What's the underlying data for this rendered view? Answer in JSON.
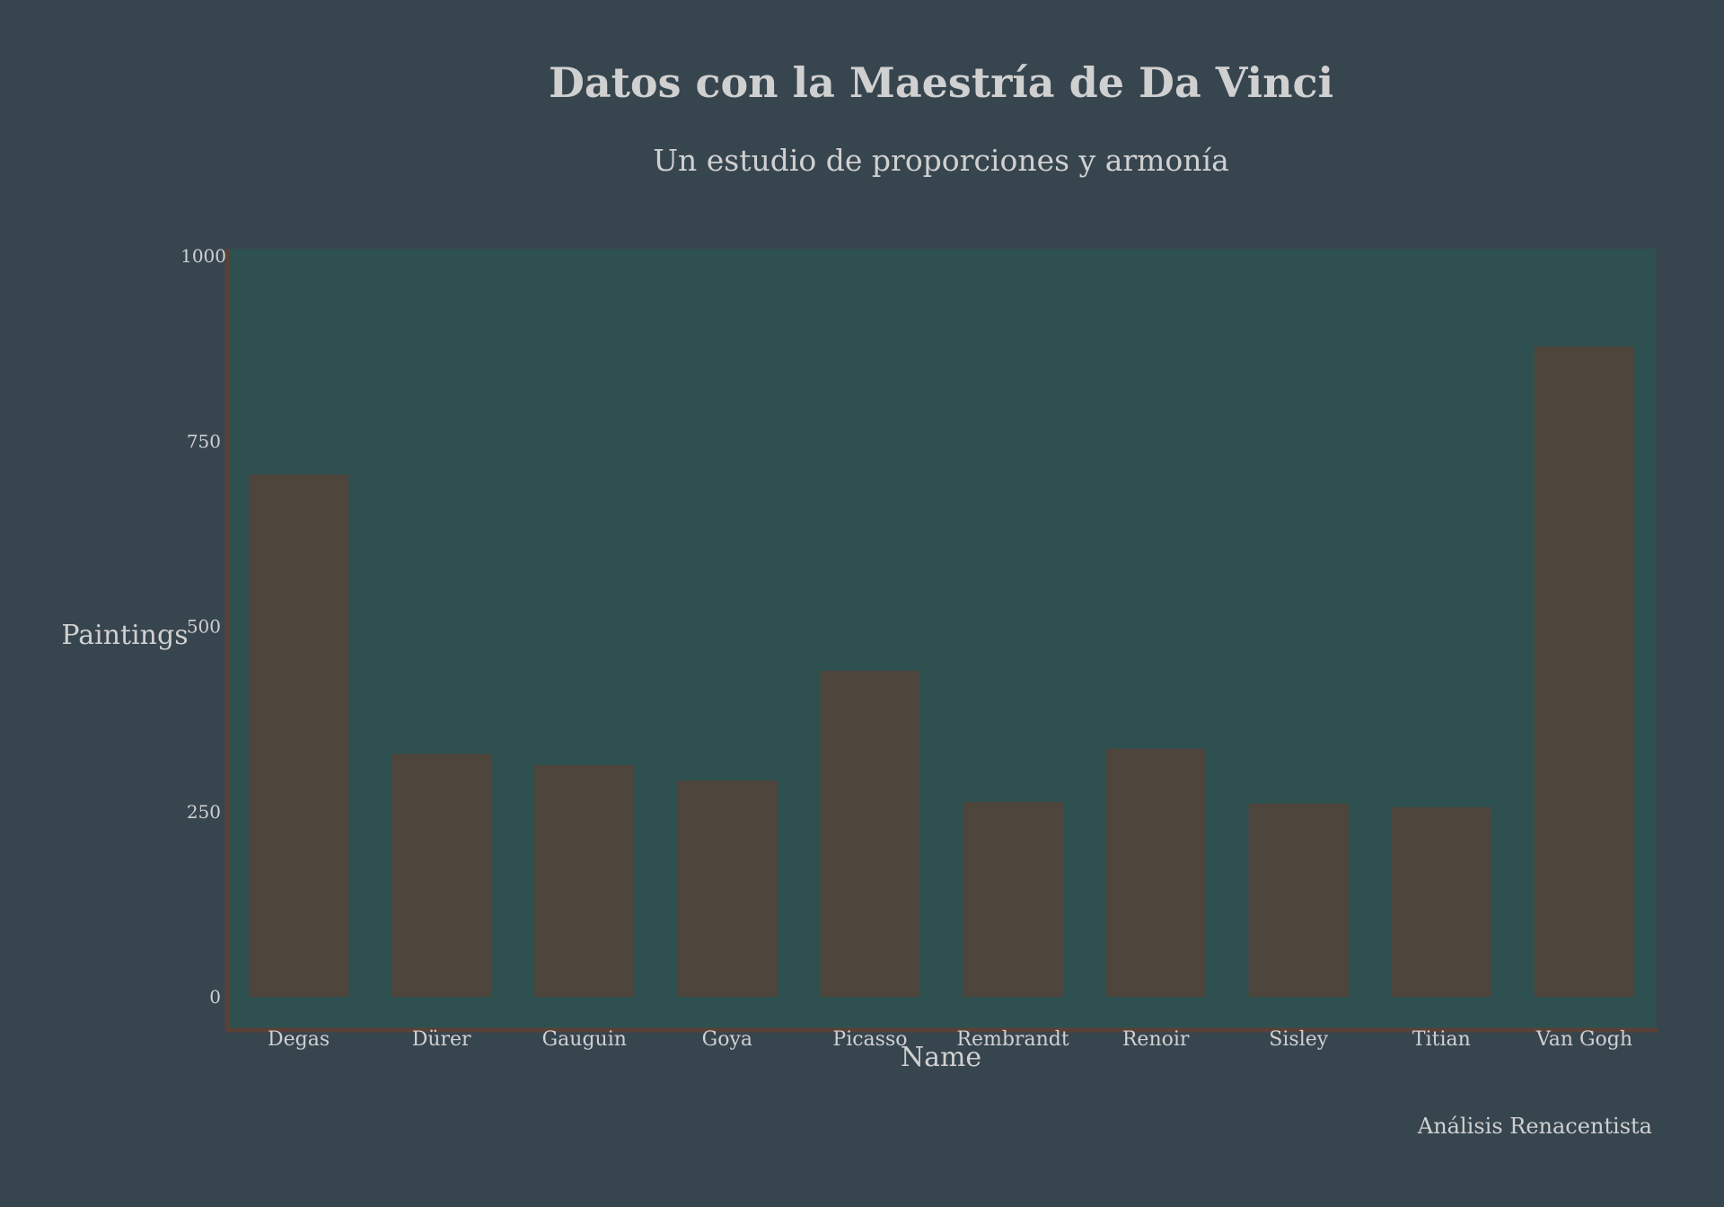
{
  "colors": {
    "page_background": "#37454f",
    "plot_background": "#2f5050",
    "bar_fill": "#4e463d",
    "axis_line": "#5a4138",
    "text": "#d0d0d0"
  },
  "chart_data": {
    "type": "bar",
    "title": "Datos con la Maestría de Da Vinci",
    "subtitle": "Un estudio de proporciones y armonía",
    "xlabel": "Name",
    "ylabel": "Paintings",
    "categories": [
      "Degas",
      "Dürer",
      "Gauguin",
      "Goya",
      "Picasso",
      "Rembrandt",
      "Renoir",
      "Sisley",
      "Titian",
      "Van Gogh"
    ],
    "values": [
      705,
      328,
      313,
      292,
      440,
      263,
      335,
      261,
      256,
      878
    ],
    "yticks": [
      0,
      250,
      500,
      750,
      1000
    ],
    "ylim": [
      0,
      1000
    ],
    "grid": false,
    "legend": "none",
    "annotation": "Análisis Renacentista"
  }
}
